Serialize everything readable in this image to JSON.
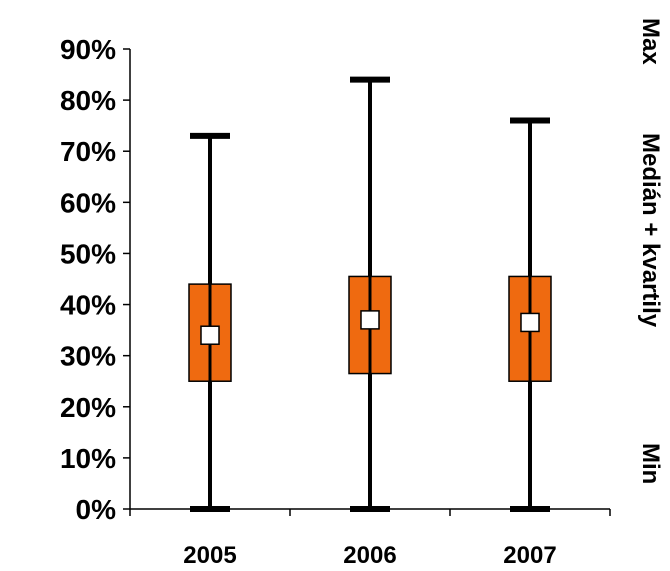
{
  "chart_data": {
    "type": "box",
    "categories": [
      "2005",
      "2006",
      "2007"
    ],
    "boxes": [
      {
        "category": "2005",
        "min": 0,
        "q1": 25,
        "median": 34,
        "q3": 44,
        "max": 73
      },
      {
        "category": "2006",
        "min": 0,
        "q1": 26.5,
        "median": 37,
        "q3": 45.5,
        "max": 84
      },
      {
        "category": "2007",
        "min": 0,
        "q1": 25,
        "median": 36.5,
        "q3": 45.5,
        "max": 76
      }
    ],
    "ylim": [
      0,
      90
    ],
    "yticks": [
      0,
      10,
      20,
      30,
      40,
      50,
      60,
      70,
      80,
      90
    ],
    "ytick_format": "percent",
    "grid": false,
    "legend_labels": {
      "max": "Max",
      "box": "Medián + kvartily",
      "min": "Min"
    },
    "colors": {
      "box_fill": "#ef6a10",
      "box_stroke": "#000000",
      "whisker": "#000000",
      "median_marker_fill": "#ffffff"
    }
  }
}
